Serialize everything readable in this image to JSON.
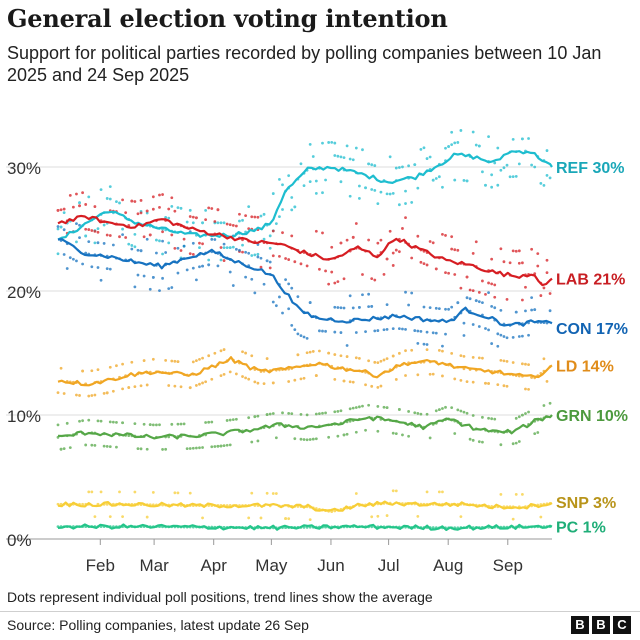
{
  "header": {
    "title": "General election voting intention",
    "subtitle": "Support for political parties recorded by polling companies between 10 Jan 2025 and 24 Sep 2025"
  },
  "footer": {
    "note": "Dots represent individual poll positions, trend lines show the average",
    "source": "Source: Polling companies, latest update 26 Sep",
    "logo": [
      "B",
      "B",
      "C"
    ]
  },
  "chart_data": {
    "type": "line",
    "x_axis": {
      "start": "2025-01-10",
      "end": "2025-09-24",
      "ticks": [
        {
          "label": "Feb",
          "date": "2025-02-01"
        },
        {
          "label": "Mar",
          "date": "2025-03-01"
        },
        {
          "label": "Apr",
          "date": "2025-04-01"
        },
        {
          "label": "May",
          "date": "2025-05-01"
        },
        {
          "label": "Jun",
          "date": "2025-06-01"
        },
        {
          "label": "Jul",
          "date": "2025-07-01"
        },
        {
          "label": "Aug",
          "date": "2025-08-01"
        },
        {
          "label": "Sep",
          "date": "2025-09-01"
        }
      ]
    },
    "y_axis": {
      "min": 0,
      "max": 33,
      "ticks": [
        {
          "value": 0,
          "label": "0%"
        },
        {
          "value": 10,
          "label": "10%"
        },
        {
          "value": 20,
          "label": "20%"
        },
        {
          "value": 30,
          "label": "30%"
        }
      ],
      "grid": true
    },
    "series": [
      {
        "name": "REF",
        "end_label": "REF 30%",
        "color": "#1ebdcf",
        "points": [
          [
            "2025-01-10",
            24
          ],
          [
            "2025-01-25",
            25.5
          ],
          [
            "2025-02-05",
            26.5
          ],
          [
            "2025-02-20",
            25.5
          ],
          [
            "2025-03-05",
            25
          ],
          [
            "2025-03-20",
            24.5
          ],
          [
            "2025-04-10",
            24.5
          ],
          [
            "2025-04-25",
            25
          ],
          [
            "2025-05-01",
            25.5
          ],
          [
            "2025-05-08",
            28
          ],
          [
            "2025-05-20",
            29.8
          ],
          [
            "2025-06-01",
            30
          ],
          [
            "2025-06-15",
            29.5
          ],
          [
            "2025-07-01",
            28.8
          ],
          [
            "2025-07-15",
            29.2
          ],
          [
            "2025-07-25",
            30
          ],
          [
            "2025-08-05",
            31
          ],
          [
            "2025-08-15",
            30.8
          ],
          [
            "2025-08-25",
            30.3
          ],
          [
            "2025-09-01",
            31.2
          ],
          [
            "2025-09-12",
            31.3
          ],
          [
            "2025-09-20",
            30.5
          ],
          [
            "2025-09-24",
            30
          ]
        ]
      },
      {
        "name": "LAB",
        "end_label": "LAB 21%",
        "color": "#d61d22",
        "points": [
          [
            "2025-01-10",
            25.5
          ],
          [
            "2025-01-25",
            26
          ],
          [
            "2025-02-05",
            25.5
          ],
          [
            "2025-02-20",
            25.2
          ],
          [
            "2025-03-05",
            25.8
          ],
          [
            "2025-03-20",
            25
          ],
          [
            "2025-04-05",
            24.5
          ],
          [
            "2025-04-20",
            24
          ],
          [
            "2025-05-05",
            23.8
          ],
          [
            "2025-05-20",
            23
          ],
          [
            "2025-06-01",
            22.5
          ],
          [
            "2025-06-15",
            23.5
          ],
          [
            "2025-06-25",
            22.8
          ],
          [
            "2025-07-05",
            24.3
          ],
          [
            "2025-07-15",
            23.5
          ],
          [
            "2025-07-30",
            22.5
          ],
          [
            "2025-08-15",
            22
          ],
          [
            "2025-08-25",
            21.5
          ],
          [
            "2025-09-05",
            21.2
          ],
          [
            "2025-09-15",
            21.4
          ],
          [
            "2025-09-20",
            20.2
          ],
          [
            "2025-09-24",
            21
          ]
        ]
      },
      {
        "name": "CON",
        "end_label": "CON 17%",
        "color": "#1672c0",
        "points": [
          [
            "2025-01-10",
            24.2
          ],
          [
            "2025-01-25",
            23
          ],
          [
            "2025-02-05",
            22.8
          ],
          [
            "2025-02-20",
            22.3
          ],
          [
            "2025-03-05",
            22
          ],
          [
            "2025-03-20",
            22.8
          ],
          [
            "2025-04-01",
            23.2
          ],
          [
            "2025-04-10",
            22.5
          ],
          [
            "2025-04-20",
            22
          ],
          [
            "2025-05-01",
            21.3
          ],
          [
            "2025-05-08",
            20
          ],
          [
            "2025-05-15",
            18.5
          ],
          [
            "2025-05-25",
            17.8
          ],
          [
            "2025-06-10",
            17.6
          ],
          [
            "2025-06-25",
            17.8
          ],
          [
            "2025-07-05",
            18
          ],
          [
            "2025-07-20",
            17.7
          ],
          [
            "2025-08-01",
            17.5
          ],
          [
            "2025-08-10",
            18.5
          ],
          [
            "2025-08-20",
            18
          ],
          [
            "2025-09-01",
            17.2
          ],
          [
            "2025-09-15",
            17.5
          ],
          [
            "2025-09-24",
            17.4
          ]
        ]
      },
      {
        "name": "LD",
        "end_label": "LD 14%",
        "color": "#f0a623",
        "points": [
          [
            "2025-01-10",
            12.8
          ],
          [
            "2025-01-25",
            12.5
          ],
          [
            "2025-02-05",
            12.8
          ],
          [
            "2025-02-15",
            13.2
          ],
          [
            "2025-03-01",
            13.5
          ],
          [
            "2025-03-20",
            13.2
          ],
          [
            "2025-04-10",
            14.5
          ],
          [
            "2025-04-25",
            13.5
          ],
          [
            "2025-05-10",
            13.7
          ],
          [
            "2025-05-25",
            14.2
          ],
          [
            "2025-06-05",
            13.8
          ],
          [
            "2025-06-15",
            13.6
          ],
          [
            "2025-06-25",
            13.2
          ],
          [
            "2025-07-10",
            14.2
          ],
          [
            "2025-07-25",
            14.3
          ],
          [
            "2025-08-10",
            13.7
          ],
          [
            "2025-08-25",
            13.5
          ],
          [
            "2025-09-05",
            13.2
          ],
          [
            "2025-09-15",
            13.0
          ],
          [
            "2025-09-24",
            14
          ]
        ]
      },
      {
        "name": "GRN",
        "end_label": "GRN 10%",
        "color": "#55a747",
        "points": [
          [
            "2025-01-10",
            8.2
          ],
          [
            "2025-01-25",
            8.6
          ],
          [
            "2025-02-10",
            8.4
          ],
          [
            "2025-03-01",
            8.2
          ],
          [
            "2025-03-20",
            8.3
          ],
          [
            "2025-04-05",
            8.5
          ],
          [
            "2025-04-20",
            8.8
          ],
          [
            "2025-05-05",
            9.2
          ],
          [
            "2025-05-20",
            9.0
          ],
          [
            "2025-06-05",
            9.3
          ],
          [
            "2025-06-20",
            9.8
          ],
          [
            "2025-07-05",
            9.5
          ],
          [
            "2025-07-20",
            9.0
          ],
          [
            "2025-08-01",
            9.7
          ],
          [
            "2025-08-15",
            8.9
          ],
          [
            "2025-08-28",
            8.6
          ],
          [
            "2025-09-05",
            8.7
          ],
          [
            "2025-09-15",
            9.5
          ],
          [
            "2025-09-24",
            10
          ]
        ]
      },
      {
        "name": "SNP",
        "end_label": "SNP 3%",
        "color": "#f7ce37",
        "points": [
          [
            "2025-01-10",
            2.8
          ],
          [
            "2025-02-15",
            2.8
          ],
          [
            "2025-03-20",
            2.7
          ],
          [
            "2025-04-25",
            2.7
          ],
          [
            "2025-05-20",
            2.6
          ],
          [
            "2025-06-01",
            2.2
          ],
          [
            "2025-06-15",
            2.7
          ],
          [
            "2025-07-01",
            2.9
          ],
          [
            "2025-07-20",
            2.8
          ],
          [
            "2025-08-10",
            2.8
          ],
          [
            "2025-08-25",
            2.6
          ],
          [
            "2025-09-10",
            2.6
          ],
          [
            "2025-09-24",
            2.9
          ]
        ]
      },
      {
        "name": "PC",
        "end_label": "PC 1%",
        "color": "#24c58a",
        "points": [
          [
            "2025-01-10",
            1.0
          ],
          [
            "2025-03-01",
            1.0
          ],
          [
            "2025-05-01",
            0.9
          ],
          [
            "2025-06-15",
            1.0
          ],
          [
            "2025-08-01",
            0.9
          ],
          [
            "2025-09-24",
            1.0
          ]
        ]
      }
    ],
    "legend": "end-of-line labels"
  }
}
